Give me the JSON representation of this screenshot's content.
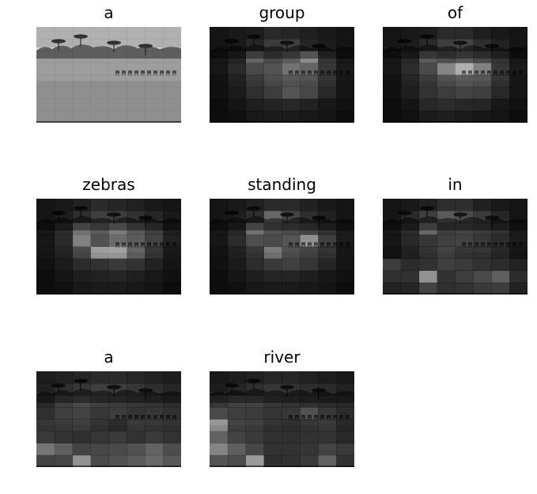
{
  "figure": {
    "panels": [
      {
        "word": "a",
        "attention": [
          [
            0.85,
            0.85,
            0.85,
            0.85,
            0.85,
            0.85,
            0.85,
            0.85
          ],
          [
            0.85,
            0.85,
            0.85,
            0.85,
            0.85,
            0.85,
            0.85,
            0.85
          ],
          [
            0.85,
            0.85,
            0.85,
            0.85,
            0.85,
            0.85,
            0.85,
            0.85
          ],
          [
            0.85,
            0.85,
            0.85,
            0.85,
            0.85,
            0.85,
            0.85,
            0.85
          ],
          [
            0.85,
            0.85,
            0.85,
            0.85,
            0.85,
            0.85,
            0.85,
            0.85
          ],
          [
            0.85,
            0.85,
            0.85,
            0.85,
            0.85,
            0.85,
            0.85,
            0.85
          ],
          [
            0.85,
            0.85,
            0.85,
            0.85,
            0.85,
            0.85,
            0.85,
            0.85
          ],
          [
            0.85,
            0.85,
            0.85,
            0.85,
            0.85,
            0.85,
            0.85,
            0.85
          ]
        ]
      },
      {
        "word": "group",
        "attention": [
          [
            0.1,
            0.12,
            0.14,
            0.2,
            0.18,
            0.15,
            0.12,
            0.1
          ],
          [
            0.1,
            0.12,
            0.18,
            0.28,
            0.3,
            0.18,
            0.14,
            0.1
          ],
          [
            0.12,
            0.2,
            0.55,
            0.4,
            0.5,
            0.75,
            0.3,
            0.12
          ],
          [
            0.12,
            0.22,
            0.4,
            0.45,
            0.62,
            0.55,
            0.3,
            0.14
          ],
          [
            0.1,
            0.18,
            0.32,
            0.42,
            0.48,
            0.45,
            0.28,
            0.12
          ],
          [
            0.1,
            0.16,
            0.28,
            0.36,
            0.5,
            0.42,
            0.24,
            0.12
          ],
          [
            0.08,
            0.12,
            0.18,
            0.22,
            0.24,
            0.2,
            0.14,
            0.1
          ],
          [
            0.08,
            0.1,
            0.14,
            0.16,
            0.16,
            0.14,
            0.12,
            0.08
          ]
        ]
      },
      {
        "word": "of",
        "attention": [
          [
            0.1,
            0.12,
            0.14,
            0.2,
            0.2,
            0.15,
            0.12,
            0.1
          ],
          [
            0.1,
            0.14,
            0.2,
            0.3,
            0.32,
            0.22,
            0.16,
            0.1
          ],
          [
            0.12,
            0.22,
            0.5,
            0.42,
            0.48,
            0.4,
            0.28,
            0.12
          ],
          [
            0.12,
            0.24,
            0.4,
            0.72,
            0.95,
            0.7,
            0.3,
            0.14
          ],
          [
            0.1,
            0.2,
            0.32,
            0.44,
            0.5,
            0.46,
            0.28,
            0.12
          ],
          [
            0.1,
            0.18,
            0.3,
            0.36,
            0.4,
            0.38,
            0.24,
            0.12
          ],
          [
            0.08,
            0.12,
            0.24,
            0.26,
            0.24,
            0.22,
            0.14,
            0.1
          ],
          [
            0.08,
            0.1,
            0.16,
            0.18,
            0.16,
            0.14,
            0.12,
            0.08
          ]
        ]
      },
      {
        "word": "zebras",
        "attention": [
          [
            0.1,
            0.12,
            0.16,
            0.2,
            0.18,
            0.16,
            0.12,
            0.1
          ],
          [
            0.1,
            0.14,
            0.22,
            0.3,
            0.3,
            0.24,
            0.18,
            0.12
          ],
          [
            0.12,
            0.24,
            0.62,
            0.5,
            0.66,
            0.48,
            0.34,
            0.16
          ],
          [
            0.12,
            0.24,
            0.7,
            0.44,
            0.58,
            0.5,
            0.36,
            0.18
          ],
          [
            0.12,
            0.2,
            0.4,
            0.86,
            0.88,
            0.54,
            0.3,
            0.14
          ],
          [
            0.1,
            0.16,
            0.26,
            0.3,
            0.34,
            0.3,
            0.2,
            0.12
          ],
          [
            0.08,
            0.12,
            0.18,
            0.2,
            0.22,
            0.18,
            0.14,
            0.1
          ],
          [
            0.08,
            0.1,
            0.14,
            0.16,
            0.16,
            0.14,
            0.12,
            0.08
          ]
        ]
      },
      {
        "word": "standing",
        "attention": [
          [
            0.1,
            0.12,
            0.16,
            0.2,
            0.2,
            0.16,
            0.12,
            0.1
          ],
          [
            0.1,
            0.14,
            0.22,
            0.5,
            0.32,
            0.22,
            0.16,
            0.1
          ],
          [
            0.12,
            0.22,
            0.62,
            0.44,
            0.4,
            0.36,
            0.26,
            0.14
          ],
          [
            0.12,
            0.24,
            0.42,
            0.4,
            0.46,
            0.78,
            0.34,
            0.14
          ],
          [
            0.1,
            0.18,
            0.3,
            0.66,
            0.44,
            0.38,
            0.28,
            0.12
          ],
          [
            0.1,
            0.16,
            0.26,
            0.34,
            0.38,
            0.32,
            0.22,
            0.12
          ],
          [
            0.08,
            0.12,
            0.18,
            0.22,
            0.22,
            0.18,
            0.14,
            0.1
          ],
          [
            0.08,
            0.1,
            0.14,
            0.16,
            0.16,
            0.14,
            0.12,
            0.08
          ]
        ]
      },
      {
        "word": "in",
        "attention": [
          [
            0.1,
            0.12,
            0.16,
            0.22,
            0.22,
            0.16,
            0.12,
            0.1
          ],
          [
            0.1,
            0.2,
            0.3,
            0.44,
            0.36,
            0.28,
            0.18,
            0.1
          ],
          [
            0.12,
            0.24,
            0.56,
            0.34,
            0.36,
            0.32,
            0.26,
            0.14
          ],
          [
            0.12,
            0.22,
            0.3,
            0.34,
            0.36,
            0.3,
            0.24,
            0.14
          ],
          [
            0.1,
            0.18,
            0.28,
            0.36,
            0.3,
            0.28,
            0.22,
            0.12
          ],
          [
            0.36,
            0.26,
            0.3,
            0.38,
            0.34,
            0.3,
            0.26,
            0.2
          ],
          [
            0.28,
            0.3,
            0.86,
            0.3,
            0.36,
            0.44,
            0.56,
            0.26
          ],
          [
            0.2,
            0.22,
            0.4,
            0.28,
            0.3,
            0.34,
            0.36,
            0.2
          ]
        ]
      },
      {
        "word": "a",
        "attention": [
          [
            0.14,
            0.16,
            0.18,
            0.2,
            0.2,
            0.18,
            0.16,
            0.14
          ],
          [
            0.16,
            0.22,
            0.26,
            0.3,
            0.28,
            0.26,
            0.22,
            0.18
          ],
          [
            0.22,
            0.34,
            0.4,
            0.34,
            0.32,
            0.3,
            0.28,
            0.24
          ],
          [
            0.26,
            0.34,
            0.36,
            0.3,
            0.32,
            0.28,
            0.3,
            0.26
          ],
          [
            0.3,
            0.32,
            0.34,
            0.28,
            0.24,
            0.32,
            0.3,
            0.28
          ],
          [
            0.34,
            0.3,
            0.28,
            0.32,
            0.34,
            0.3,
            0.34,
            0.3
          ],
          [
            0.7,
            0.56,
            0.4,
            0.42,
            0.44,
            0.48,
            0.58,
            0.46
          ],
          [
            0.4,
            0.42,
            0.86,
            0.44,
            0.48,
            0.54,
            0.62,
            0.52
          ]
        ]
      },
      {
        "word": "river",
        "attention": [
          [
            0.12,
            0.14,
            0.16,
            0.18,
            0.18,
            0.16,
            0.14,
            0.12
          ],
          [
            0.14,
            0.18,
            0.22,
            0.26,
            0.24,
            0.22,
            0.2,
            0.16
          ],
          [
            0.3,
            0.36,
            0.36,
            0.3,
            0.28,
            0.26,
            0.24,
            0.22
          ],
          [
            0.4,
            0.34,
            0.32,
            0.28,
            0.3,
            0.44,
            0.3,
            0.24
          ],
          [
            0.82,
            0.36,
            0.34,
            0.28,
            0.26,
            0.3,
            0.32,
            0.22
          ],
          [
            0.58,
            0.4,
            0.34,
            0.3,
            0.28,
            0.3,
            0.3,
            0.24
          ],
          [
            0.78,
            0.56,
            0.42,
            0.3,
            0.3,
            0.32,
            0.4,
            0.34
          ],
          [
            0.5,
            0.46,
            0.92,
            0.28,
            0.3,
            0.34,
            0.58,
            0.3
          ]
        ]
      }
    ]
  }
}
